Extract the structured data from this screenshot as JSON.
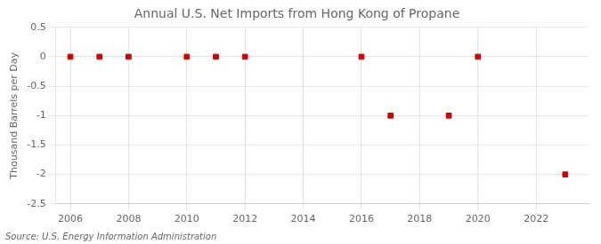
{
  "chart_data": {
    "type": "scatter",
    "title": "Annual U.S. Net Imports from Hong Kong of Propane",
    "ylabel": "Thousand Barrels per Day",
    "source": "Source: U.S. Energy Information Administration",
    "x": [
      2006,
      2007,
      2008,
      2010,
      2011,
      2012,
      2016,
      2017,
      2019,
      2020,
      2023
    ],
    "values": [
      0,
      0,
      0,
      0,
      0,
      0,
      0,
      -1,
      -1,
      0,
      -2
    ],
    "color": "#cc0000",
    "marker": "square",
    "xlim": [
      2005.5,
      2023.8
    ],
    "ylim": [
      -2.5,
      0.5
    ],
    "xticks": [
      2006,
      2008,
      2010,
      2012,
      2014,
      2016,
      2018,
      2020,
      2022
    ],
    "yticks": [
      0.5,
      0,
      -0.5,
      -1,
      -1.5,
      -2,
      -2.5
    ],
    "grid": true
  }
}
